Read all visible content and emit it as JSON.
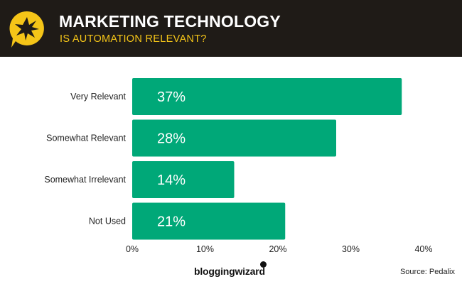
{
  "header": {
    "title": "MARKETING TECHNOLOGY",
    "subtitle": "IS AUTOMATION RELEVANT?",
    "badge_icon": "star-burst-speech-bubble-icon"
  },
  "colors": {
    "header_bg": "#1f1b17",
    "accent": "#f5c518",
    "bar": "#00a878",
    "bar_label": "#ffffff"
  },
  "chart_data": {
    "type": "bar",
    "orientation": "horizontal",
    "categories": [
      "Very Relevant",
      "Somewhat Relevant",
      "Somewhat Irrelevant",
      "Not Used"
    ],
    "values": [
      37,
      28,
      14,
      21
    ],
    "data_labels": [
      "37%",
      "28%",
      "14%",
      "21%"
    ],
    "xlim": [
      0,
      40
    ],
    "x_ticks": [
      "0%",
      "10%",
      "20%",
      "30%",
      "40%"
    ],
    "grid": false
  },
  "footer": {
    "brand": "bloggingwizard",
    "source": "Source: Pedalix"
  }
}
